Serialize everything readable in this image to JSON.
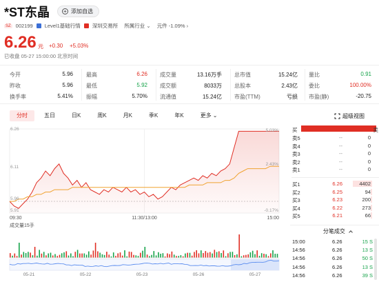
{
  "header": {
    "title": "*ST东晶",
    "fav_label": "添加自选",
    "market_badge": "SZ",
    "code": "002199",
    "level1": "Level1基础行情",
    "exchange": "深圳交易所",
    "industry": "所属行业",
    "industry_chevron": "⌄",
    "sector": "元件 -1.09%",
    "sector_chevron": "›"
  },
  "quote": {
    "price": "6.26",
    "unit": "元",
    "change": "+0.30",
    "change_pct": "+5.03%",
    "status": "已收盘  05-27 15:00:00 北京时间"
  },
  "stats": [
    [
      {
        "l": "今开",
        "v": "5.96",
        "c": "black"
      },
      {
        "l": "最高",
        "v": "6.26",
        "c": "red"
      },
      {
        "l": "成交量",
        "v": "13.16万手",
        "c": "black"
      },
      {
        "l": "总市值",
        "v": "15.24亿",
        "c": "black"
      },
      {
        "l": "量比",
        "v": "0.91",
        "c": "green"
      }
    ],
    [
      {
        "l": "昨收",
        "v": "5.96",
        "c": "black"
      },
      {
        "l": "最低",
        "v": "5.92",
        "c": "green"
      },
      {
        "l": "成交额",
        "v": "8033万",
        "c": "black"
      },
      {
        "l": "总股本",
        "v": "2.43亿",
        "c": "black"
      },
      {
        "l": "委比",
        "v": "100.00%",
        "c": "red"
      }
    ],
    [
      {
        "l": "换手率",
        "v": "5.41%",
        "c": "black"
      },
      {
        "l": "振幅",
        "v": "5.70%",
        "c": "black"
      },
      {
        "l": "流通值",
        "v": "15.24亿",
        "c": "black"
      },
      {
        "l": "市盈(TTM)",
        "v": "亏损",
        "c": "black"
      },
      {
        "l": "市盈(静)",
        "v": "-20.75",
        "c": "black"
      }
    ]
  ],
  "tabs": [
    "分时",
    "五日",
    "日K",
    "周K",
    "月K",
    "季K",
    "年K",
    "更多"
  ],
  "more_chevron": "⌄",
  "superview_label": "超级视图",
  "chart_data": {
    "type": "line",
    "price_axis": [
      "6.26",
      "6.11",
      "5.96",
      "5.91"
    ],
    "pct_axis": [
      "5.03%",
      "2.43%",
      "-0.17%"
    ],
    "x_ticks": [
      "09:30",
      "11:30/13:00",
      "15:00"
    ],
    "prev_close": 5.96,
    "ylim": [
      5.91,
      6.27
    ],
    "series": [
      {
        "values": [
          5.96,
          5.94,
          5.93,
          5.95,
          5.97,
          6.0,
          6.04,
          6.06,
          6.09,
          6.07,
          6.1,
          6.12,
          6.08,
          6.06,
          6.03,
          6.05,
          6.02,
          6.04,
          6.01,
          6.0,
          5.99,
          6.01,
          6.0,
          6.02,
          6.01,
          6.0,
          6.02,
          6.0,
          6.01,
          5.99,
          6.0,
          5.98,
          5.99,
          5.97,
          5.98,
          6.0,
          6.02,
          6.01,
          6.03,
          6.04,
          6.05,
          6.06,
          6.05,
          6.07,
          6.06,
          6.08,
          6.07,
          6.09,
          6.1,
          6.12,
          6.19,
          6.26,
          6.26,
          6.26,
          6.26,
          6.26,
          6.26,
          6.26,
          6.26,
          6.26,
          6.26
        ]
      },
      {
        "values": [
          5.96,
          5.96,
          5.97,
          5.97,
          5.98,
          5.98,
          5.99,
          5.99,
          6.0,
          6.0,
          6.01,
          6.01,
          6.01,
          6.01,
          6.02,
          6.02,
          6.02,
          6.02,
          6.02,
          6.02,
          6.02,
          6.02,
          6.02,
          6.02,
          6.02,
          6.02,
          6.02,
          6.02,
          6.02,
          6.02,
          6.02,
          6.02,
          6.02,
          6.02,
          6.02,
          6.02,
          6.02,
          6.02,
          6.02,
          6.02,
          6.03,
          6.03,
          6.03,
          6.03,
          6.04,
          6.04,
          6.04,
          6.04,
          6.05,
          6.05,
          6.06,
          6.08,
          6.09,
          6.1,
          6.1,
          6.1,
          6.1,
          6.1,
          6.11,
          6.11,
          6.11
        ]
      }
    ]
  },
  "volume_label": "成交量15手",
  "mini_x_labels": [
    "05-21",
    "05-22",
    "05-23",
    "05-26",
    "05-27"
  ],
  "orderbook": {
    "sell": [
      {
        "l": "卖",
        "p": "",
        "v": ""
      },
      {
        "l": "卖5",
        "p": "--",
        "v": "0"
      },
      {
        "l": "卖4",
        "p": "--",
        "v": "0"
      },
      {
        "l": "卖3",
        "p": "--",
        "v": "0"
      },
      {
        "l": "卖2",
        "p": "--",
        "v": "0"
      },
      {
        "l": "卖1",
        "p": "--",
        "v": "0"
      }
    ],
    "buy": [
      {
        "l": "买1",
        "p": "6.26",
        "v": "4402"
      },
      {
        "l": "买2",
        "p": "6.25",
        "v": "94"
      },
      {
        "l": "买3",
        "p": "6.23",
        "v": "200"
      },
      {
        "l": "买4",
        "p": "6.22",
        "v": "273"
      },
      {
        "l": "买5",
        "p": "6.21",
        "v": "66"
      }
    ],
    "top_left": "买",
    "top_right": "卖",
    "ratio": 0.92
  },
  "ticks_title": "分笔成交",
  "ticks": [
    {
      "t": "15:00",
      "p": "6.26",
      "v": "15 S"
    },
    {
      "t": "14:56",
      "p": "6.26",
      "v": "13 S"
    },
    {
      "t": "14:56",
      "p": "6.26",
      "v": "50 S"
    },
    {
      "t": "14:56",
      "p": "6.26",
      "v": "13 S"
    },
    {
      "t": "14:56",
      "p": "6.26",
      "v": "39 S"
    }
  ],
  "colors": {
    "red": "#e02e24",
    "green": "#16a34a",
    "orange": "#f0a330",
    "blue": "#5b8def"
  }
}
